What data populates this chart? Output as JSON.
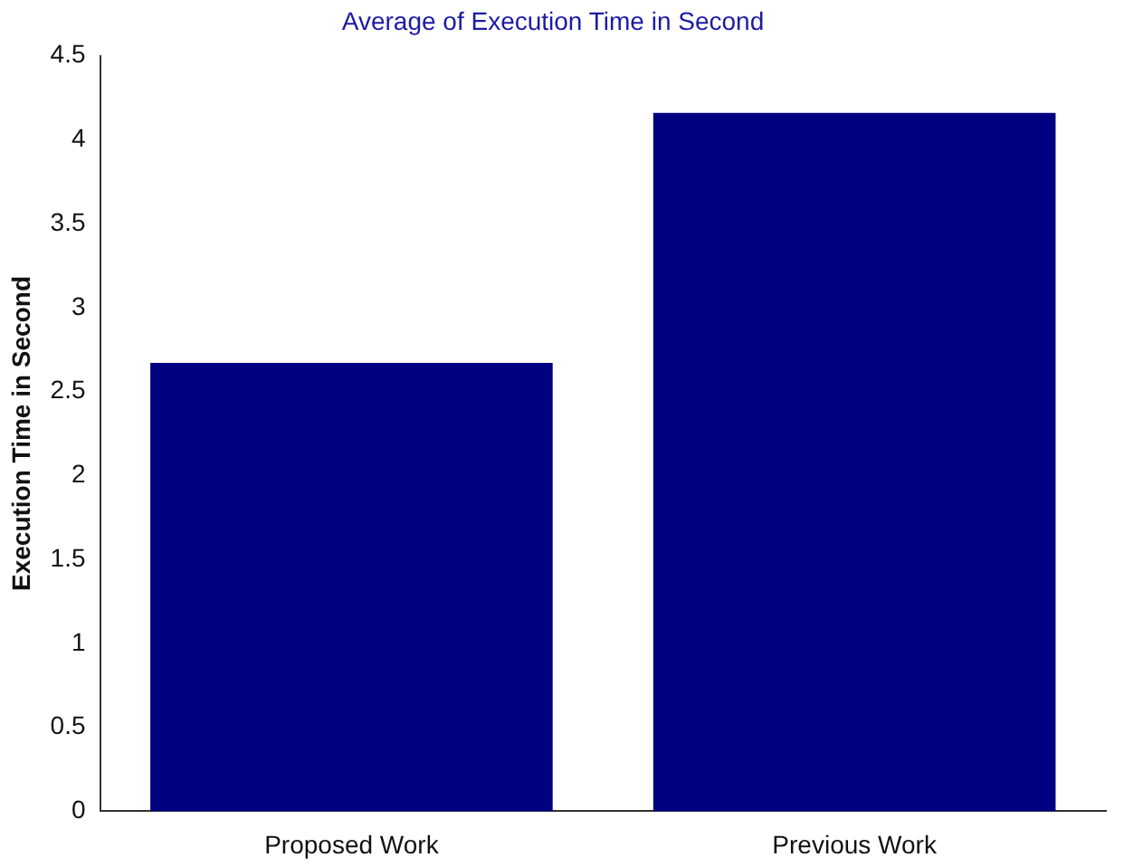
{
  "chart_data": {
    "type": "bar",
    "title": "Average of Execution Time in Second",
    "ylabel": "Execution Time in Second",
    "categories": [
      "Proposed Work",
      "Previous Work"
    ],
    "values": [
      2.67,
      4.16
    ],
    "color": "#000080",
    "ylim": [
      0,
      4.5
    ],
    "yticks": [
      0,
      0.5,
      1,
      1.5,
      2,
      2.5,
      3,
      3.5,
      4,
      4.5
    ],
    "grid": false
  }
}
